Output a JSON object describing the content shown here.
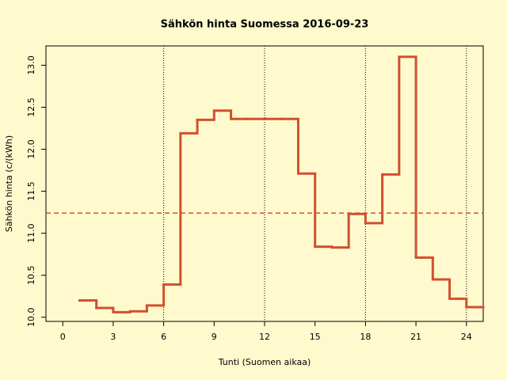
{
  "chart_data": {
    "type": "step",
    "title": "Sähkön hinta Suomessa 2016-09-23",
    "xlabel": "Tunti (Suomen aikaa)",
    "ylabel": "Sähkön hinta (c/(kWh)",
    "x": [
      1,
      2,
      3,
      4,
      5,
      6,
      7,
      8,
      9,
      10,
      11,
      12,
      13,
      14,
      15,
      16,
      17,
      18,
      19,
      20,
      21,
      22,
      23,
      24
    ],
    "values": [
      10.2,
      10.11,
      10.06,
      10.07,
      10.14,
      10.39,
      12.19,
      12.35,
      12.46,
      12.36,
      12.36,
      12.36,
      12.36,
      11.71,
      10.84,
      10.83,
      11.23,
      11.12,
      11.7,
      13.1,
      10.71,
      10.45,
      10.22,
      10.12
    ],
    "color": "#d0502f",
    "mean_line": 11.24,
    "vlines": [
      6,
      12,
      18,
      24
    ],
    "xlim": [
      -1,
      25
    ],
    "ylim": [
      9.95,
      13.23
    ],
    "xticks": [
      0,
      3,
      6,
      9,
      12,
      15,
      18,
      21,
      24
    ],
    "yticks": [
      {
        "value": 10,
        "label": "10.0"
      },
      10.5,
      {
        "value": 11,
        "label": "11.0"
      },
      11.5,
      {
        "value": 12,
        "label": "12.0"
      },
      12.5,
      {
        "value": 13,
        "label": "13.0"
      }
    ]
  }
}
